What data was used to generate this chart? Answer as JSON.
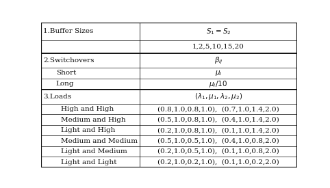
{
  "rows": [
    {
      "col1": "1.Buffer Sizes",
      "col2": "$S_1 = S_2$",
      "is_section": true,
      "indent": 0
    },
    {
      "col1": "",
      "col2": "1,2,5,10,15,20",
      "is_section": false,
      "indent": 0
    },
    {
      "col1": "2.Switchovers",
      "col2": "$\\beta_{ij}$",
      "is_section": true,
      "indent": 0
    },
    {
      "col1": "Short",
      "col2": "$\\mu_i$",
      "is_section": false,
      "indent": 0.05
    },
    {
      "col1": "Long",
      "col2": "$\\mu_i/10$",
      "is_section": false,
      "indent": 0.05
    },
    {
      "col1": "3.Loads",
      "col2": "$(\\lambda_1, \\mu_1, \\lambda_2, \\mu_2)$",
      "is_section": true,
      "indent": 0
    },
    {
      "col1": "High and High",
      "col2": "(0.8,1.0,0.8,1.0),  (0.7,1.0,1.4,2.0)",
      "is_section": false,
      "indent": 0.07
    },
    {
      "col1": "Medium and High",
      "col2": "(0.5,1.0,0.8,1.0),  (0.4,1.0,1.4,2.0)",
      "is_section": false,
      "indent": 0.07
    },
    {
      "col1": "Light and High",
      "col2": "(0.2,1.0,0.8,1.0),  (0.1,1.0,1.4,2.0)",
      "is_section": false,
      "indent": 0.07
    },
    {
      "col1": "Medium and Medium",
      "col2": "(0.5,1.0,0.5,1.0),  (0.4,1.0,0.8,2.0)",
      "is_section": false,
      "indent": 0.07
    },
    {
      "col1": "Light and Medium",
      "col2": "(0.2,1.0,0.5,1.0),  (0.1,1.0,0.8,2.0)",
      "is_section": false,
      "indent": 0.07
    },
    {
      "col1": "Light and Light",
      "col2": "(0.2,1.0,0.2,1.0),  (0.1,1.0,0.2,2.0)",
      "is_section": false,
      "indent": 0.07
    }
  ],
  "row_heights": [
    1.45,
    1.1,
    1.2,
    0.9,
    0.9,
    1.2,
    0.88,
    0.88,
    0.88,
    0.88,
    0.88,
    0.88
  ],
  "col_split": 0.385,
  "border_color": "#111111",
  "text_color": "#111111",
  "fontsize": 7.5,
  "thick_borders_above": [
    0,
    2,
    5
  ],
  "figsize": [
    4.82,
    2.75
  ],
  "dpi": 100
}
